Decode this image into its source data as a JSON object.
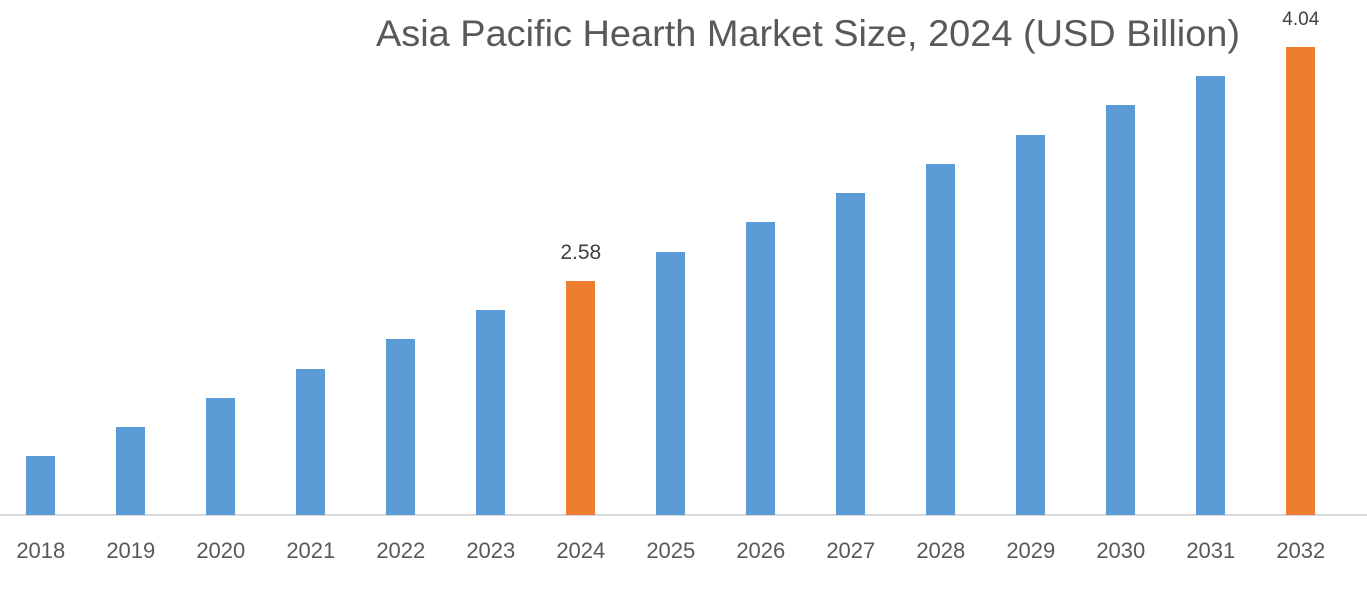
{
  "chart": {
    "title": "Asia Pacific Hearth Market Size, 2024 (USD Billion)",
    "colors": {
      "default": "#5b9bd5",
      "highlight": "#ed7d31",
      "axis": "#d9d9d9",
      "text": "#595959"
    }
  },
  "chart_data": {
    "type": "bar",
    "title": "Asia Pacific Hearth Market Size, 2024 (USD Billion)",
    "xlabel": "",
    "ylabel": "",
    "categories": [
      "2018",
      "2019",
      "2020",
      "2021",
      "2022",
      "2023",
      "2024",
      "2025",
      "2026",
      "2027",
      "2028",
      "2029",
      "2030",
      "2031",
      "2032"
    ],
    "values": [
      1.49,
      1.67,
      1.85,
      2.03,
      2.22,
      2.4,
      2.58,
      2.76,
      2.95,
      3.13,
      3.31,
      3.49,
      3.68,
      3.86,
      4.04
    ],
    "highlighted": [
      "2024",
      "2032"
    ],
    "data_labels": {
      "2024": "2.58",
      "2032": "4.04"
    },
    "grid": false,
    "legend": null,
    "y_axis_visible": false
  }
}
